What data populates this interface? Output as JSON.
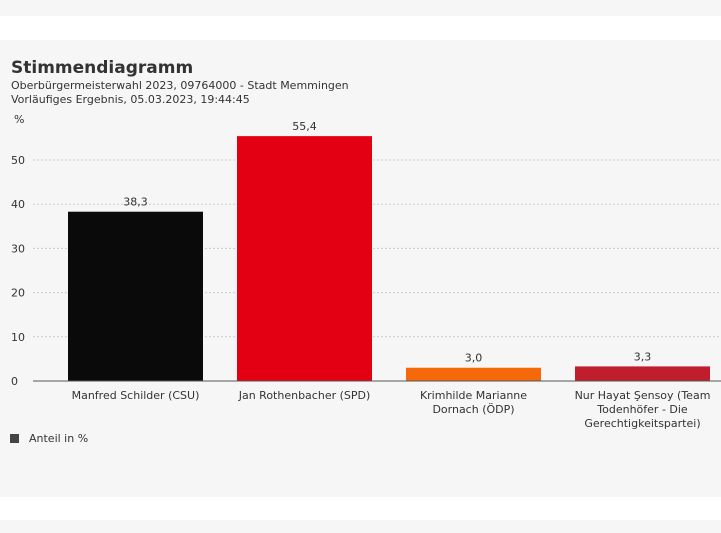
{
  "title": "Stimmendiagramm",
  "subtitle": "Oberbürgermeisterwahl 2023, 09764000 - Stadt Memmingen",
  "status": "Vorläufiges Ergebnis, 05.03.2023, 19:44:45",
  "chart_data": {
    "type": "bar",
    "ylabel": "%",
    "ylim": [
      0,
      55
    ],
    "yticks": [
      0,
      10,
      20,
      30,
      40,
      50
    ],
    "grid": true,
    "categories": [
      [
        "Manfred Schilder (CSU)"
      ],
      [
        "Jan Rothenbacher (SPD)"
      ],
      [
        "Krimhilde Marianne",
        "Dornach (ÖDP)"
      ],
      [
        "Nur Hayat Şensoy (Team",
        "Todenhöfer - Die",
        "Gerechtigkeitspartei)"
      ]
    ],
    "values": [
      38.3,
      55.4,
      3.0,
      3.3
    ],
    "labels": [
      "38,3",
      "55,4",
      "3,0",
      "3,3"
    ],
    "colors": [
      "#0a0a0a",
      "#e30013",
      "#f5690a",
      "#c01e2c"
    ],
    "legend": "Anteil in %",
    "legend_position": "bottom-left"
  }
}
